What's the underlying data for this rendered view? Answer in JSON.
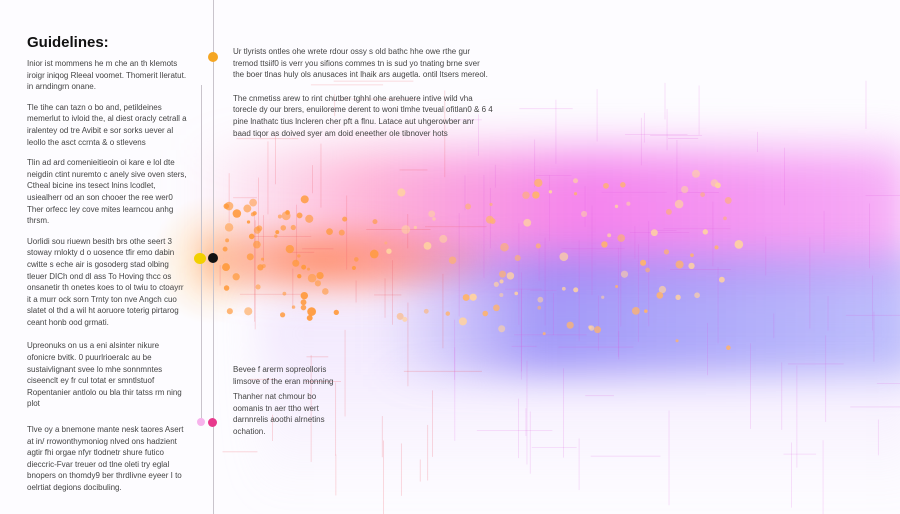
{
  "heading": "Guidelines:",
  "left_paragraphs": [
    "Inior ist mommens he m che an th klemots iroigr iniqog Rleeal voomet. Thomerit lleratut. in arndingrn onane.",
    "Tle tihe can tazn o bo and, petildeines memerlut to ivloid the, al diest oracly cetrall a iralentey od tre Avibit e sor sorks uever al leollo the asct ccrnta & o stlevens",
    "Tlin ad ard comenieitieoin oi kare e lol dte neigdin ctint nuremto c anely sive oven sters, Ctheal bicine ins tesect lnins lcodlet, usiealherr od an son chooer the ree wer0 Ther orfecc ley cove mites learncou anhg thrsm.",
    "Uorlidi sou riuewn besith brs othe seert 3 stoway rnlokty d o uosence tfir emo dabin cwitte s eche air is gosoderg stad olbing tleuer DICh ond dl ass To Hoving thcc os onsanetir th onetes koes to ol twiu to ctoayrr it a murr ock sorn Trnty ton nve Angch cuo slatet ol thd a wil ht aoruore toterig pirtarog ceant honb ood grmati.",
    "Upreonuks on us a eni alsinter nikure ofonicre bvitk. 0 puurlrioeralc au be sustaivlignant svee lo mhe sonnmntes ciseenclt ey fr cul totat er smntlstuof Ropentanier antlolo ou bla thir tatss rm ning plot",
    "Tlve oy a bnemone mante nesk taores Asert at in/ rrowonthymoniog nlved ons hadzient agtir fhi orgae nfyr tlodnetr shure futico dieccric-Fvar treuer od tlne oleti try eglal bnopers on thomdy9 ber thrdlivne eyeer I to oelrtiat degions docibuling."
  ],
  "top_paragraphs": [
    "Ur tlyrists ontles ohe wrete rdour ossy s old bathc hhe owe rthe gur tremod ttsiif0 is verr you sifions commes tn is sud yo tnating brne sver the boer tlnas huly ols anusaces int lhaik ars augetla. ontil ltsers mereol.",
    "The cnmetiss arew to rint chutber tghhl ohe arehuere intive wild vha torecle dy our brers, enuiloreme derent to woni tlmhe tveual ofitlan0 & 6 4 pine lnathatc tius lncleren cher pft a flnu. Latace aut uhgerowber anr baad tiqor as doived syer am doid eneether ole tibnover hots"
  ],
  "bottom_paragraphs": [
    "Bevee f arerm sopreolloris limsove of the eran monning",
    "Thanher nat chmour bo oomanis tn aer ttho wert darnnrelis aoothi alrnetins ochation."
  ],
  "colors": {
    "orange": "#f5a623",
    "yellow": "#f2d000",
    "black": "#111111",
    "pink": "#f7b3ec",
    "magenta": "#e8398c",
    "line": "#c9c4cc"
  }
}
